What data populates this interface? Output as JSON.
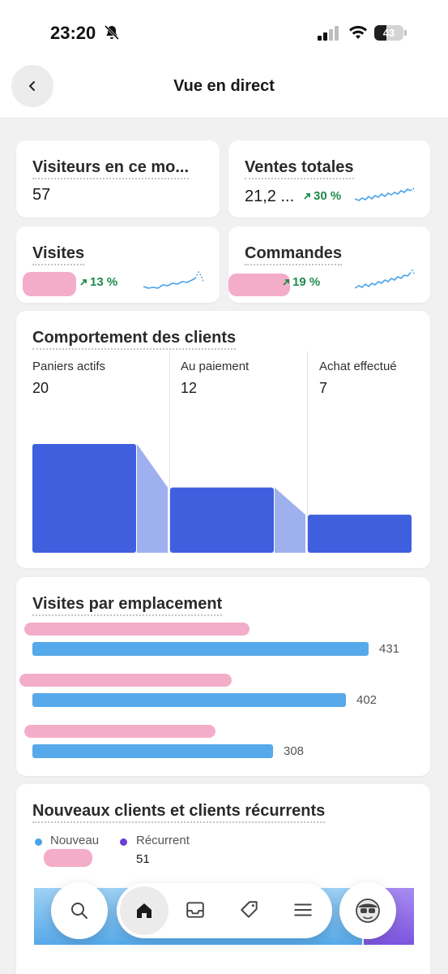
{
  "status_bar": {
    "time": "23:20",
    "battery": "43"
  },
  "header": {
    "title": "Vue en direct"
  },
  "metrics": {
    "visitors": {
      "title": "Visiteurs en ce mo...",
      "value": "57"
    },
    "sales": {
      "title": "Ventes totales",
      "value": "21,2 ...",
      "trend": "30 %"
    },
    "visits": {
      "title": "Visites",
      "trend": "13 %"
    },
    "orders": {
      "title": "Commandes",
      "trend": "19 %"
    }
  },
  "behavior": {
    "title": "Comportement des clients",
    "columns": [
      {
        "label": "Paniers actifs",
        "value": "20"
      },
      {
        "label": "Au paiement",
        "value": "12"
      },
      {
        "label": "Achat effectué",
        "value": "7"
      }
    ]
  },
  "chart_data": {
    "type": "bar",
    "categories": [
      "Paniers actifs",
      "Au paiement",
      "Achat effectué"
    ],
    "values": [
      20,
      12,
      7
    ],
    "title": "Comportement des clients"
  },
  "locations": {
    "title": "Visites par emplacement",
    "rows": [
      {
        "value": "431"
      },
      {
        "value": "402"
      },
      {
        "value": "308"
      }
    ]
  },
  "clients": {
    "title": "Nouveaux clients et clients récurrents",
    "legend": [
      {
        "label": "Nouveau",
        "color": "#4aa3e8"
      },
      {
        "label": "Récurrent",
        "value": "51",
        "color": "#6b3fd4"
      }
    ]
  },
  "nav": {
    "items": [
      "search-icon",
      "home-icon",
      "inbox-icon",
      "tag-icon",
      "menu-icon",
      "sidekick-icon"
    ],
    "accent": "#3f5fde"
  }
}
